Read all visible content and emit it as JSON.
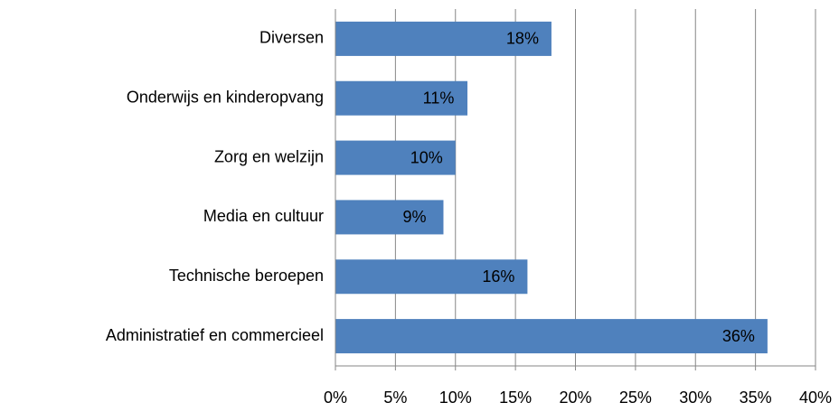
{
  "chart_data": {
    "type": "barh",
    "categories": [
      "Diversen",
      "Onderwijs en kinderopvang",
      "Zorg en welzijn",
      "Media en cultuur",
      "Technische beroepen",
      "Administratief en commercieel"
    ],
    "values": [
      18,
      11,
      10,
      9,
      16,
      36
    ],
    "value_labels": [
      "18%",
      "11%",
      "10%",
      "9%",
      "16%",
      "36%"
    ],
    "color": "#4f81bd",
    "xlim": [
      0,
      40
    ],
    "xticks": [
      {
        "value": 0,
        "label": "0%"
      },
      {
        "value": 5,
        "label": "5%"
      },
      {
        "value": 10,
        "label": "10%"
      },
      {
        "value": 15,
        "label": "15%"
      },
      {
        "value": 20,
        "label": "20%"
      },
      {
        "value": 25,
        "label": "25%"
      },
      {
        "value": 30,
        "label": "30%"
      },
      {
        "value": 35,
        "label": "35%"
      },
      {
        "value": 40,
        "label": "40%"
      }
    ],
    "grid": true
  }
}
